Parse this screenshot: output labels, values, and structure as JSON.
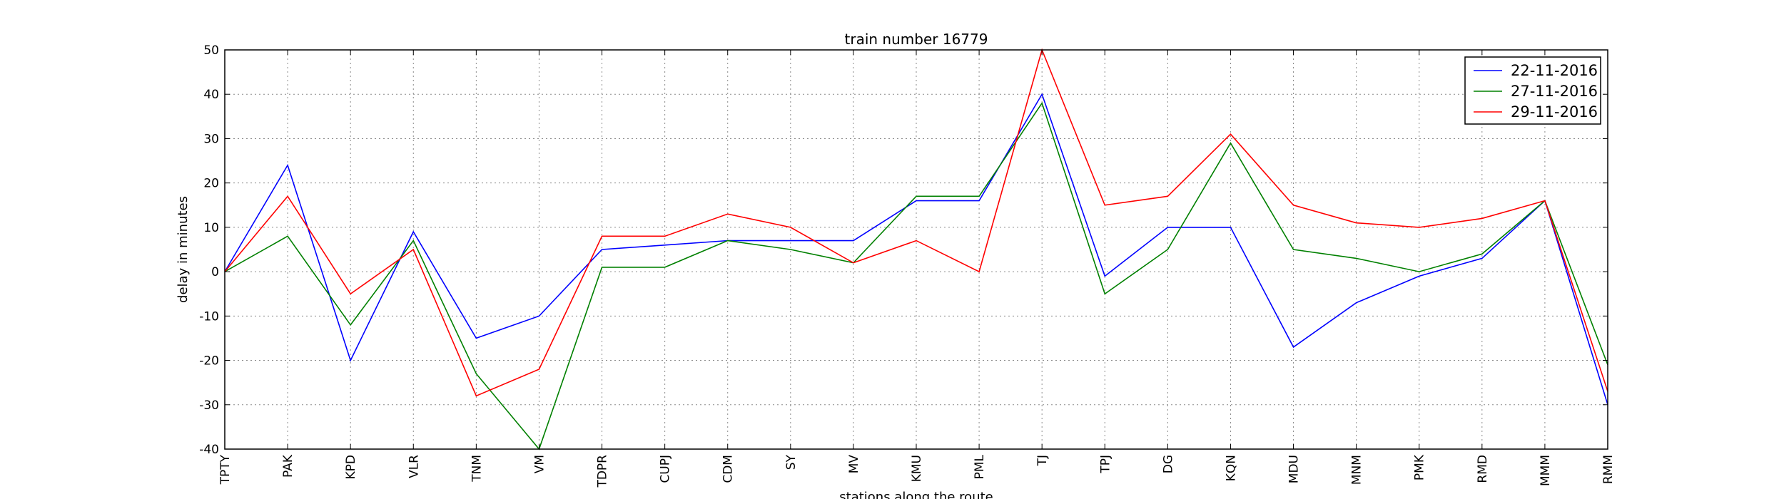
{
  "chart_data": {
    "type": "line",
    "title": "train number 16779",
    "xlabel": "stations along the route",
    "ylabel": "delay in minutes",
    "ylim": [
      -40,
      50
    ],
    "yticks": [
      -40,
      -30,
      -20,
      -10,
      0,
      10,
      20,
      30,
      40,
      50
    ],
    "grid": true,
    "legend_position": "top-right",
    "categories": [
      "TPTY",
      "PAK",
      "KPD",
      "VLR",
      "TNM",
      "VM",
      "TDPR",
      "CUPJ",
      "CDM",
      "SY",
      "MV",
      "KMU",
      "PML",
      "TJ",
      "TPJ",
      "DG",
      "KQN",
      "MDU",
      "MNM",
      "PMK",
      "RMD",
      "MMM",
      "RMM"
    ],
    "series": [
      {
        "name": "22-11-2016",
        "color": "#0000ff",
        "values": [
          0,
          24,
          -20,
          9,
          -15,
          -10,
          5,
          6,
          7,
          7,
          7,
          16,
          16,
          40,
          -1,
          10,
          10,
          -17,
          -7,
          -1,
          3,
          16,
          -30
        ]
      },
      {
        "name": "27-11-2016",
        "color": "#008000",
        "values": [
          0,
          8,
          -12,
          7,
          -23,
          -40,
          1,
          1,
          7,
          5,
          2,
          17,
          17,
          38,
          -5,
          5,
          29,
          5,
          3,
          0,
          4,
          16,
          -21
        ]
      },
      {
        "name": "29-11-2016",
        "color": "#ff0000",
        "values": [
          0,
          17,
          -5,
          5,
          -28,
          -22,
          8,
          8,
          13,
          10,
          2,
          7,
          0,
          50,
          15,
          17,
          31,
          15,
          11,
          10,
          12,
          16,
          -27
        ]
      }
    ]
  }
}
